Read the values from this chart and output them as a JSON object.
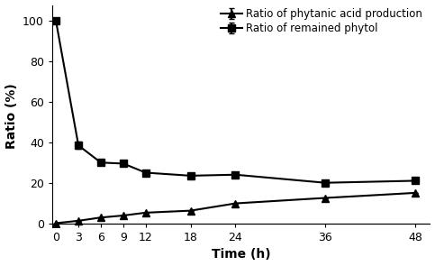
{
  "time": [
    0,
    3,
    6,
    9,
    12,
    18,
    24,
    36,
    48
  ],
  "phytanic_acid": [
    0,
    1.2,
    2.8,
    3.8,
    5.2,
    6.2,
    9.8,
    12.5,
    15.0
  ],
  "phytanic_acid_err": [
    0,
    0.0,
    0.0,
    0.0,
    0.0,
    0.0,
    0.0,
    0.0,
    0.0
  ],
  "remained_phytol": [
    100,
    38.5,
    30.0,
    29.5,
    25.0,
    23.5,
    24.0,
    20.0,
    21.0
  ],
  "remained_phytol_err": [
    0.0,
    1.8,
    1.2,
    0.0,
    0.0,
    0.0,
    0.0,
    0.0,
    0.0
  ],
  "xlabel": "Time (h)",
  "ylabel": "Ratio (%)",
  "legend_phytanic": "Ratio of phytanic acid production",
  "legend_phytol": "Ratio of remained phytol",
  "xlim": [
    -0.5,
    50
  ],
  "ylim": [
    -2,
    108
  ],
  "yticks": [
    0,
    20,
    40,
    60,
    80,
    100
  ],
  "xticks": [
    0,
    3,
    6,
    9,
    12,
    18,
    24,
    36,
    48
  ],
  "line_color": "#000000",
  "marker_triangle": "^",
  "marker_square": "s",
  "markersize": 6,
  "linewidth": 1.5,
  "fontsize_label": 10,
  "fontsize_tick": 9,
  "fontsize_legend": 8.5
}
